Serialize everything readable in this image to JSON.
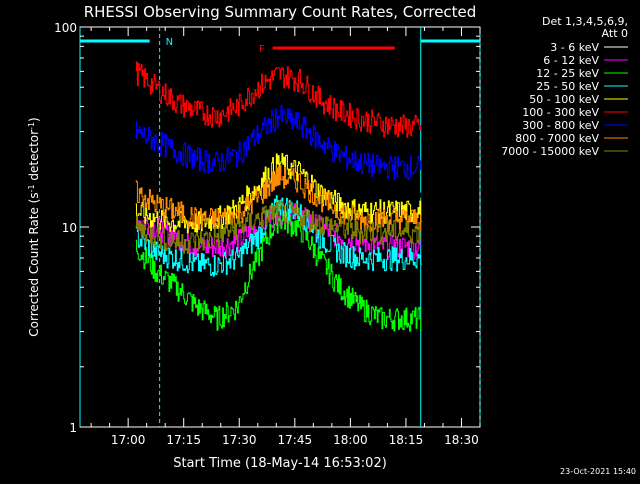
{
  "chart_data": {
    "type": "line",
    "title": "RHESSI Observing Summary Count Rates, Corrected",
    "xlabel": "Start Time (18-May-14 16:53:02)",
    "ylabel_parts": [
      "Corrected Count Rate (s",
      "-1",
      " detector",
      "-1",
      ")"
    ],
    "y_scale": "log",
    "ylim": [
      1,
      100
    ],
    "y_ticks": [
      1,
      10,
      100
    ],
    "y_tick_labels": [
      "1",
      "10",
      "100"
    ],
    "x_ticks_min": [
      0,
      15,
      30,
      45,
      60,
      75,
      90
    ],
    "x_tick_labels": [
      "17:00",
      "17:15",
      "17:30",
      "17:45",
      "18:00",
      "18:15",
      "18:30"
    ],
    "xlim_min": [
      -13,
      95
    ],
    "data_start_min": 2,
    "data_end_min": 79,
    "legend": {
      "placement": "top-right",
      "header": [
        "Det 1,3,4,5,6,9,",
        "Att 0"
      ]
    },
    "series": [
      {
        "name": "3 - 6 keV",
        "color": "#000000",
        "values": [
          14,
          13,
          12.5,
          13,
          13.5,
          14,
          15.5,
          17,
          16,
          14,
          13,
          12.5,
          12.5,
          13,
          13
        ]
      },
      {
        "name": "6 - 12 keV",
        "color": "#ff00ff",
        "values": [
          11,
          10,
          9,
          8,
          8,
          8.5,
          10,
          12,
          11.5,
          10,
          9,
          8.5,
          8,
          8,
          8
        ]
      },
      {
        "name": "12 - 25 keV",
        "color": "#00ff00",
        "values": [
          8,
          6,
          5,
          4,
          3.5,
          4,
          7,
          11,
          10,
          7,
          5,
          4,
          3.5,
          3.5,
          3.5
        ]
      },
      {
        "name": "25 - 50 keV",
        "color": "#00ffff",
        "values": [
          9,
          7.5,
          7,
          6.5,
          6.5,
          7,
          9,
          13,
          12,
          9,
          7.5,
          7,
          7,
          7,
          7
        ]
      },
      {
        "name": "50 - 100 keV",
        "color": "#ffff00",
        "values": [
          12,
          11,
          10.5,
          10.5,
          11,
          12.5,
          16,
          21,
          19,
          15,
          13,
          12,
          12,
          12,
          12
        ]
      },
      {
        "name": "100 - 300 keV",
        "color": "#ff0000",
        "values": [
          60,
          50,
          42,
          38,
          36,
          40,
          50,
          58,
          55,
          44,
          38,
          35,
          33,
          32,
          32
        ]
      },
      {
        "name": "300 - 800 keV",
        "color": "#0000ff",
        "values": [
          30,
          27,
          24,
          22,
          21,
          23,
          29,
          36,
          33,
          27,
          23,
          21,
          20,
          20,
          20
        ]
      },
      {
        "name": "800 - 7000 keV",
        "color": "#ff8c00",
        "values": [
          15,
          13,
          12,
          11,
          11,
          11.5,
          14,
          18,
          17,
          14,
          12,
          11,
          11,
          11,
          11
        ]
      },
      {
        "name": "7000 - 15000 keV",
        "color": "#808000",
        "values": [
          10,
          9,
          8.5,
          8.5,
          9,
          10,
          11,
          12,
          11.5,
          10.5,
          10,
          9.5,
          9.5,
          9.5,
          9.5
        ]
      }
    ],
    "series_x_min": [
      2,
      7.5,
      13,
      18.5,
      24,
      29.5,
      35,
      40.5,
      46,
      51.5,
      57,
      62.5,
      68,
      73.5,
      79
    ],
    "night_marker": {
      "label": "N",
      "start_min": -13,
      "end_min": 8.5,
      "color": "#00ffff"
    },
    "saa_marker": {
      "start_min": 79,
      "end_min": 95,
      "color": "#00ffff"
    },
    "flare_marker": {
      "label": "F",
      "start_min": 39,
      "end_min": 72,
      "color": "#ff0000"
    },
    "vertical_lines_min": [
      -13,
      8.5,
      79,
      95
    ]
  },
  "footer": {
    "timestamp": "23-Oct-2021 15:40"
  }
}
